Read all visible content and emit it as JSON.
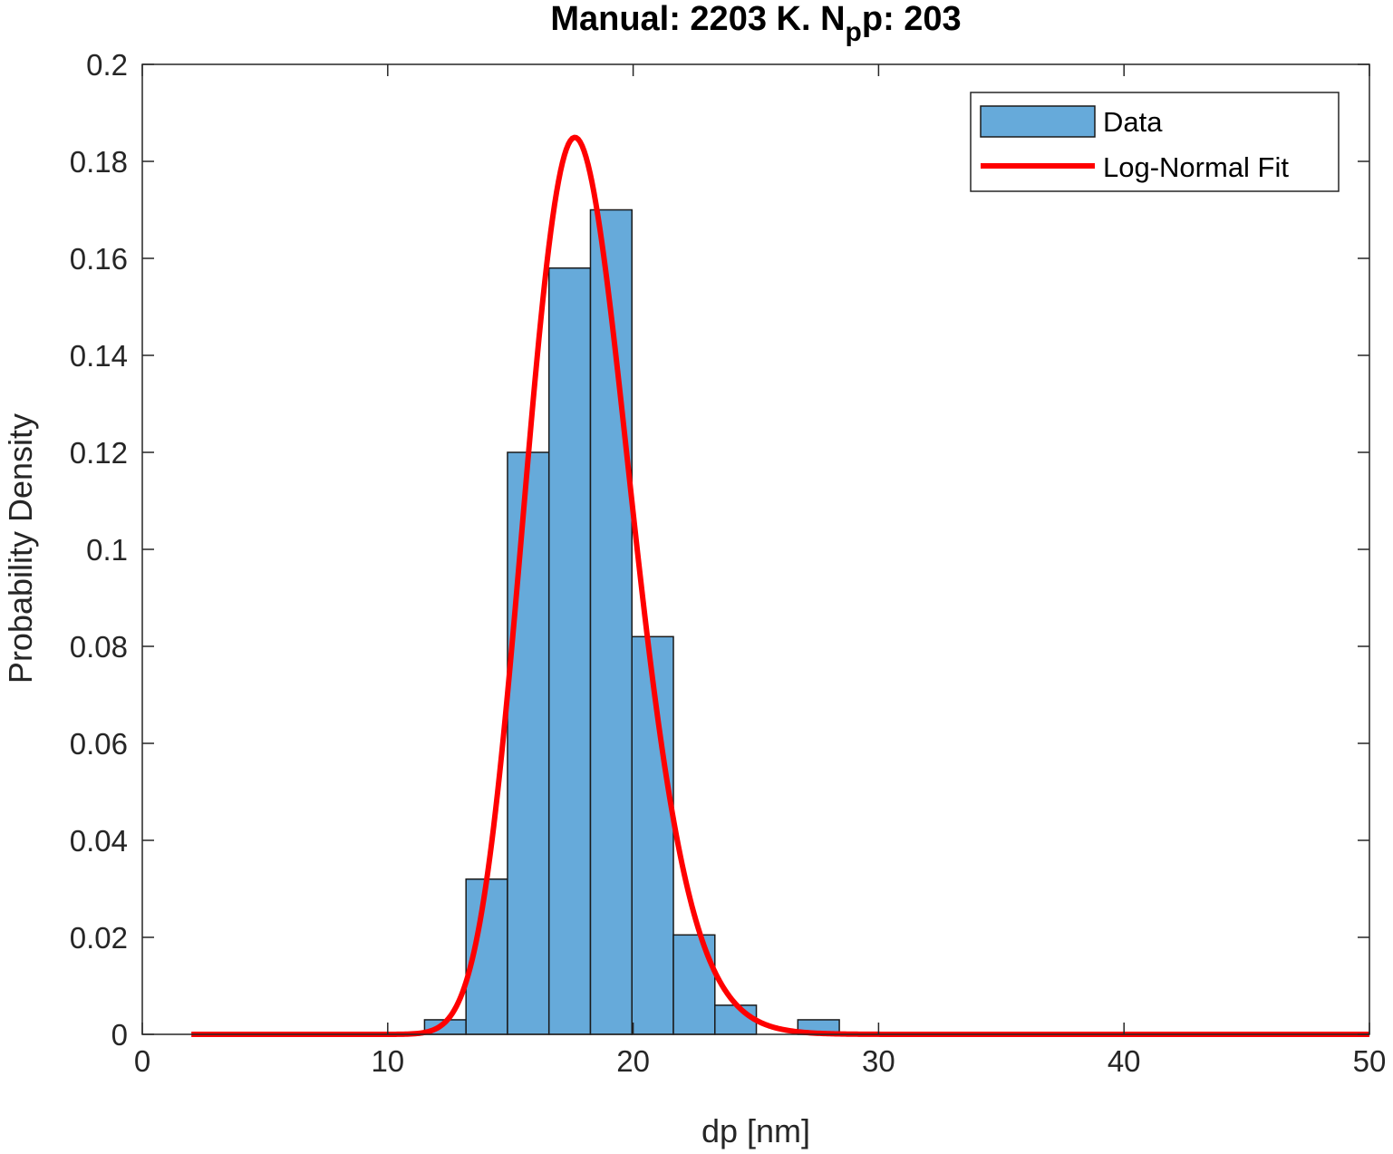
{
  "chart_data": {
    "type": "bar",
    "title": {
      "prefix": "Manual: 2203 K. N",
      "subscript": "p",
      "suffix": "p: 203"
    },
    "xlabel": "dp [nm]",
    "ylabel": "Probability Density",
    "xlim": [
      0,
      50
    ],
    "ylim": [
      0,
      0.2
    ],
    "xticks": [
      0,
      10,
      20,
      30,
      40,
      50
    ],
    "xtick_labels": [
      "0",
      "10",
      "20",
      "30",
      "40",
      "50"
    ],
    "yticks": [
      0,
      0.02,
      0.04,
      0.06,
      0.08,
      0.1,
      0.12,
      0.14,
      0.16,
      0.18,
      0.2
    ],
    "ytick_labels": [
      "0",
      "0.02",
      "0.04",
      "0.06",
      "0.08",
      "0.1",
      "0.12",
      "0.14",
      "0.16",
      "0.18",
      "0.2"
    ],
    "grid": false,
    "legend_position": "top-right",
    "histogram": {
      "name": "Data",
      "color": "#66AADA",
      "edge_color": "#1a1a1a",
      "bin_edges": [
        11.5,
        13.19,
        14.88,
        16.57,
        18.26,
        19.95,
        21.64,
        23.33,
        25.02,
        26.71,
        28.4
      ],
      "values": [
        0.003,
        0.032,
        0.12,
        0.158,
        0.17,
        0.082,
        0.0205,
        0.006,
        0.0,
        0.003
      ]
    },
    "fit": {
      "name": "Log-Normal Fit",
      "color": "#FF0000",
      "mu": 2.884,
      "sigma": 0.1215,
      "x_range": [
        2,
        50
      ]
    }
  }
}
